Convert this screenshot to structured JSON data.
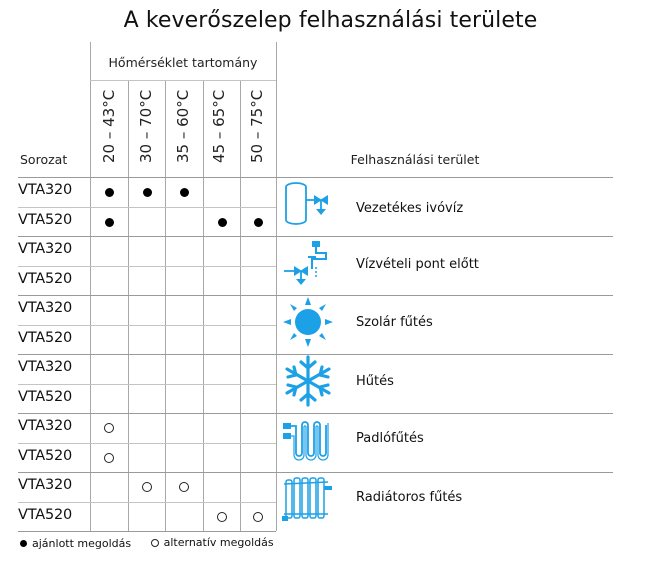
{
  "title": "A keverőszelep felhasználási területe",
  "temp_header": "Hőmérséklet tartomány",
  "series_header": "Sorozat",
  "usage_header": "Felhasználási terület",
  "ranges": [
    "20 – 43°C",
    "30 – 70°C",
    "35 – 60°C",
    "45 – 65°C",
    "50 – 75°C"
  ],
  "rows": [
    {
      "model": "VTA320",
      "marks": [
        "filled",
        "filled",
        "filled",
        "",
        ""
      ]
    },
    {
      "model": "VTA520",
      "marks": [
        "filled",
        "",
        "",
        "filled",
        "filled"
      ]
    },
    {
      "model": "VTA320",
      "marks": [
        "",
        "",
        "",
        "",
        ""
      ]
    },
    {
      "model": "VTA520",
      "marks": [
        "",
        "",
        "",
        "",
        ""
      ]
    },
    {
      "model": "VTA320",
      "marks": [
        "",
        "",
        "",
        "",
        ""
      ]
    },
    {
      "model": "VTA520",
      "marks": [
        "",
        "",
        "",
        "",
        ""
      ]
    },
    {
      "model": "VTA320",
      "marks": [
        "",
        "",
        "",
        "",
        ""
      ]
    },
    {
      "model": "VTA520",
      "marks": [
        "",
        "",
        "",
        "",
        ""
      ]
    },
    {
      "model": "VTA320",
      "marks": [
        "open",
        "",
        "",
        "",
        ""
      ]
    },
    {
      "model": "VTA520",
      "marks": [
        "open",
        "",
        "",
        "",
        ""
      ]
    },
    {
      "model": "VTA320",
      "marks": [
        "",
        "open",
        "open",
        "",
        ""
      ]
    },
    {
      "model": "VTA520",
      "marks": [
        "",
        "",
        "",
        "open",
        "open"
      ]
    }
  ],
  "usages": [
    {
      "label": "Vezetékes ivóvíz",
      "icon": "water-tank-valve-icon"
    },
    {
      "label": "Vízvételi pont előtt",
      "icon": "tap-valve-icon"
    },
    {
      "label": "Szolár fűtés",
      "icon": "sun-icon"
    },
    {
      "label": "Hűtés",
      "icon": "snowflake-icon"
    },
    {
      "label": "Padlófűtés",
      "icon": "floor-heating-icon"
    },
    {
      "label": "Radiátoros fűtés",
      "icon": "radiator-icon"
    }
  ],
  "legend": {
    "filled": "ajánlott megoldás",
    "open": "alternatív megoldás"
  },
  "colors": {
    "icon": "#1da1e6",
    "line": "#a8a8a8"
  }
}
